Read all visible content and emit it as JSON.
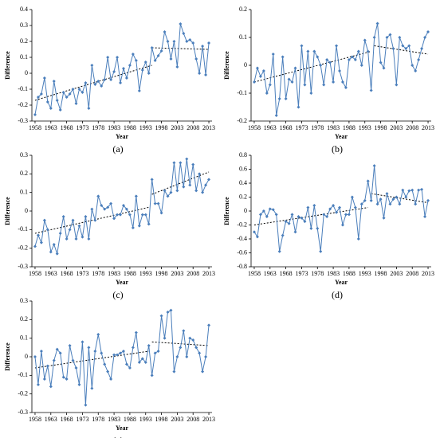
{
  "chart_data": [
    {
      "type": "line",
      "caption": "(a)",
      "x_label": "Year",
      "y_label": "Difference",
      "xlim": [
        1957,
        2014
      ],
      "xticks": [
        1958,
        1963,
        1968,
        1973,
        1978,
        1983,
        1988,
        1993,
        1998,
        2003,
        2008,
        2013
      ],
      "ylim": [
        -0.3,
        0.4
      ],
      "yticks": [
        -0.3,
        -0.2,
        -0.1,
        0,
        0.1,
        0.2,
        0.3,
        0.4
      ],
      "series": [
        {
          "color": "#4a7ebb",
          "x": [
            1958,
            1959,
            1960,
            1961,
            1962,
            1963,
            1964,
            1965,
            1966,
            1967,
            1968,
            1969,
            1970,
            1971,
            1972,
            1973,
            1974,
            1975,
            1976,
            1977,
            1978,
            1979,
            1980,
            1981,
            1982,
            1983,
            1984,
            1985,
            1986,
            1987,
            1988,
            1989,
            1990,
            1991,
            1992,
            1993,
            1994,
            1995,
            1996,
            1997,
            1998,
            1999,
            2000,
            2001,
            2002,
            2003,
            2004,
            2005,
            2006,
            2007,
            2008,
            2009,
            2010,
            2011,
            2012,
            2013
          ],
          "values": [
            -0.26,
            -0.15,
            -0.13,
            -0.03,
            -0.18,
            -0.22,
            -0.05,
            -0.17,
            -0.23,
            -0.12,
            -0.15,
            -0.13,
            -0.1,
            -0.19,
            -0.1,
            -0.12,
            -0.06,
            -0.22,
            0.05,
            -0.07,
            -0.05,
            -0.08,
            -0.04,
            0.1,
            -0.04,
            0.01,
            0.1,
            -0.06,
            0.03,
            -0.03,
            0.05,
            0.12,
            0.08,
            -0.11,
            0.02,
            0.07,
            0.0,
            0.16,
            0.08,
            0.11,
            0.14,
            0.26,
            0.2,
            0.09,
            0.2,
            0.04,
            0.31,
            0.25,
            0.2,
            0.21,
            0.19,
            0.09,
            0.0,
            0.17,
            -0.01,
            0.19
          ]
        }
      ],
      "trends": [
        {
          "color": "#000000",
          "x": [
            1958,
            1995
          ],
          "values": [
            -0.17,
            0.05
          ]
        },
        {
          "color": "#000000",
          "x": [
            1995,
            2013
          ],
          "values": [
            0.16,
            0.15
          ]
        }
      ]
    },
    {
      "type": "line",
      "caption": "(b)",
      "x_label": "Year",
      "y_label": "Difference",
      "xlim": [
        1957,
        2014
      ],
      "xticks": [
        1958,
        1963,
        1968,
        1973,
        1978,
        1983,
        1988,
        1993,
        1998,
        2003,
        2008,
        2013
      ],
      "ylim": [
        -0.2,
        0.2
      ],
      "yticks": [
        -0.2,
        -0.1,
        0,
        0.1,
        0.2
      ],
      "series": [
        {
          "color": "#4a7ebb",
          "x": [
            1958,
            1959,
            1960,
            1961,
            1962,
            1963,
            1964,
            1965,
            1966,
            1967,
            1968,
            1969,
            1970,
            1971,
            1972,
            1973,
            1974,
            1975,
            1976,
            1977,
            1978,
            1979,
            1980,
            1981,
            1982,
            1983,
            1984,
            1985,
            1986,
            1987,
            1988,
            1989,
            1990,
            1991,
            1992,
            1993,
            1994,
            1995,
            1996,
            1997,
            1998,
            1999,
            2000,
            2001,
            2002,
            2003,
            2004,
            2005,
            2006,
            2007,
            2008,
            2009,
            2010,
            2011,
            2012,
            2013
          ],
          "values": [
            -0.06,
            -0.01,
            -0.04,
            -0.02,
            -0.1,
            -0.07,
            0.04,
            -0.18,
            -0.12,
            0.03,
            -0.12,
            -0.05,
            -0.06,
            -0.01,
            -0.15,
            0.07,
            -0.07,
            0.05,
            -0.1,
            0.05,
            0.03,
            0.0,
            -0.07,
            0.02,
            0.01,
            -0.06,
            0.07,
            -0.02,
            -0.06,
            -0.08,
            0.02,
            0.03,
            0.02,
            0.05,
            0.0,
            0.09,
            0.05,
            -0.09,
            0.1,
            0.15,
            0.01,
            -0.01,
            0.1,
            0.11,
            0.06,
            -0.07,
            0.1,
            0.07,
            0.06,
            0.07,
            0.0,
            -0.02,
            0.02,
            0.06,
            0.1,
            0.12
          ]
        }
      ],
      "trends": [
        {
          "color": "#000000",
          "x": [
            1958,
            1995
          ],
          "values": [
            -0.06,
            0.05
          ]
        },
        {
          "color": "#000000",
          "x": [
            1996,
            2013
          ],
          "values": [
            0.07,
            0.04
          ]
        }
      ]
    },
    {
      "type": "line",
      "caption": "(c)",
      "x_label": "Year",
      "y_label": "Difference",
      "xlim": [
        1957,
        2014
      ],
      "xticks": [
        1958,
        1963,
        1968,
        1973,
        1978,
        1983,
        1988,
        1993,
        1998,
        2003,
        2008,
        2013
      ],
      "ylim": [
        -0.3,
        0.3
      ],
      "yticks": [
        -0.3,
        -0.2,
        -0.1,
        0,
        0.1,
        0.2,
        0.3
      ],
      "series": [
        {
          "color": "#4a7ebb",
          "x": [
            1958,
            1959,
            1960,
            1961,
            1962,
            1963,
            1964,
            1965,
            1966,
            1967,
            1968,
            1969,
            1970,
            1971,
            1972,
            1973,
            1974,
            1975,
            1976,
            1977,
            1978,
            1979,
            1980,
            1981,
            1982,
            1983,
            1984,
            1985,
            1986,
            1987,
            1988,
            1989,
            1990,
            1991,
            1992,
            1993,
            1994,
            1995,
            1996,
            1997,
            1998,
            1999,
            2000,
            2001,
            2002,
            2003,
            2004,
            2005,
            2006,
            2007,
            2008,
            2009,
            2010,
            2011,
            2012,
            2013
          ],
          "values": [
            -0.19,
            -0.13,
            -0.17,
            -0.05,
            -0.1,
            -0.22,
            -0.18,
            -0.23,
            -0.12,
            -0.03,
            -0.15,
            -0.1,
            -0.05,
            -0.15,
            -0.08,
            -0.14,
            -0.03,
            -0.15,
            0.01,
            -0.05,
            0.08,
            0.03,
            0.01,
            0.02,
            0.04,
            -0.04,
            -0.02,
            -0.02,
            0.03,
            0.01,
            -0.02,
            -0.09,
            0.08,
            -0.08,
            -0.02,
            -0.02,
            -0.07,
            0.17,
            0.04,
            0.04,
            -0.01,
            0.11,
            0.08,
            0.1,
            0.26,
            0.11,
            0.26,
            0.13,
            0.28,
            0.14,
            0.25,
            0.11,
            0.2,
            0.1,
            0.14,
            0.17
          ]
        }
      ],
      "trends": [
        {
          "color": "#000000",
          "x": [
            1958,
            1994
          ],
          "values": [
            -0.12,
            0.02
          ]
        },
        {
          "color": "#000000",
          "x": [
            1995,
            2013
          ],
          "values": [
            0.09,
            0.21
          ]
        }
      ]
    },
    {
      "type": "line",
      "caption": "(d)",
      "x_label": "Year",
      "y_label": "Difference",
      "xlim": [
        1957,
        2014
      ],
      "xticks": [
        1958,
        1963,
        1968,
        1973,
        1978,
        1983,
        1988,
        1993,
        1998,
        2003,
        2008,
        2013
      ],
      "ylim": [
        -0.8,
        0.8
      ],
      "yticks": [
        -0.8,
        -0.6,
        -0.4,
        -0.2,
        0,
        0.2,
        0.4,
        0.6,
        0.8
      ],
      "series": [
        {
          "color": "#4a7ebb",
          "x": [
            1958,
            1959,
            1960,
            1961,
            1962,
            1963,
            1964,
            1965,
            1966,
            1967,
            1968,
            1969,
            1970,
            1971,
            1972,
            1973,
            1974,
            1975,
            1976,
            1977,
            1978,
            1979,
            1980,
            1981,
            1982,
            1983,
            1984,
            1985,
            1986,
            1987,
            1988,
            1989,
            1990,
            1991,
            1992,
            1993,
            1994,
            1995,
            1996,
            1997,
            1998,
            1999,
            2000,
            2001,
            2002,
            2003,
            2004,
            2005,
            2006,
            2007,
            2008,
            2009,
            2010,
            2011,
            2012,
            2013
          ],
          "values": [
            -0.3,
            -0.37,
            -0.05,
            0.0,
            -0.08,
            0.03,
            0.02,
            -0.05,
            -0.58,
            -0.35,
            -0.15,
            -0.18,
            -0.05,
            -0.3,
            -0.08,
            -0.1,
            -0.15,
            0.05,
            -0.25,
            0.08,
            -0.25,
            -0.58,
            -0.05,
            -0.08,
            0.03,
            0.08,
            -0.02,
            0.05,
            -0.2,
            -0.05,
            -0.05,
            0.2,
            0.05,
            -0.4,
            0.1,
            0.15,
            0.43,
            0.15,
            0.65,
            0.1,
            0.17,
            -0.1,
            0.25,
            0.1,
            0.17,
            0.2,
            0.1,
            0.3,
            0.2,
            0.29,
            0.3,
            0.1,
            0.3,
            0.31,
            -0.08,
            0.15
          ]
        }
      ],
      "trends": [
        {
          "color": "#000000",
          "x": [
            1958,
            1994
          ],
          "values": [
            -0.2,
            0.05
          ]
        },
        {
          "color": "#000000",
          "x": [
            1995,
            2013
          ],
          "values": [
            0.25,
            0.12
          ]
        }
      ]
    },
    {
      "type": "line",
      "caption": "(e)",
      "x_label": "Year",
      "y_label": "Difference",
      "xlim": [
        1957,
        2014
      ],
      "xticks": [
        1958,
        1963,
        1968,
        1973,
        1978,
        1983,
        1988,
        1993,
        1998,
        2003,
        2008,
        2013
      ],
      "ylim": [
        -0.3,
        0.3
      ],
      "yticks": [
        -0.3,
        -0.2,
        -0.1,
        0,
        0.1,
        0.2,
        0.3
      ],
      "series": [
        {
          "color": "#4a7ebb",
          "x": [
            1958,
            1959,
            1960,
            1961,
            1962,
            1963,
            1964,
            1965,
            1966,
            1967,
            1968,
            1969,
            1970,
            1971,
            1972,
            1973,
            1974,
            1975,
            1976,
            1977,
            1978,
            1979,
            1980,
            1981,
            1982,
            1983,
            1984,
            1985,
            1986,
            1987,
            1988,
            1989,
            1990,
            1991,
            1992,
            1993,
            1994,
            1995,
            1996,
            1997,
            1998,
            1999,
            2000,
            2001,
            2002,
            2003,
            2004,
            2005,
            2006,
            2007,
            2008,
            2009,
            2010,
            2011,
            2012,
            2013
          ],
          "values": [
            0.0,
            -0.15,
            0.03,
            -0.12,
            -0.05,
            -0.16,
            -0.02,
            0.04,
            0.02,
            -0.11,
            -0.12,
            0.06,
            -0.02,
            -0.06,
            -0.15,
            0.08,
            -0.26,
            0.05,
            -0.17,
            0.03,
            0.12,
            0.02,
            -0.04,
            -0.08,
            -0.12,
            0.01,
            0.01,
            0.02,
            0.03,
            -0.04,
            -0.06,
            0.05,
            0.13,
            -0.03,
            -0.01,
            -0.03,
            0.06,
            -0.1,
            0.02,
            0.03,
            0.22,
            0.1,
            0.24,
            0.25,
            -0.08,
            0.0,
            0.05,
            0.14,
            0.0,
            0.1,
            0.09,
            0.05,
            0.02,
            -0.08,
            0.0,
            0.17
          ]
        }
      ],
      "trends": [
        {
          "color": "#000000",
          "x": [
            1958,
            1994
          ],
          "values": [
            -0.06,
            0.03
          ]
        },
        {
          "color": "#000000",
          "x": [
            1995,
            2013
          ],
          "values": [
            0.08,
            0.06
          ]
        }
      ]
    }
  ]
}
